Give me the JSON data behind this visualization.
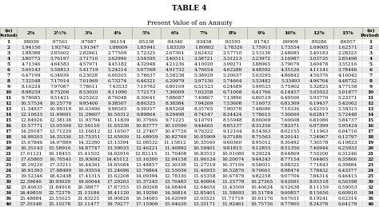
{
  "title1": "TABLE 4",
  "title2": "Present Value of an Annuity",
  "columns": [
    "(n)\nPeriods",
    "2%",
    "2½%",
    "3%",
    "4%",
    "5%",
    "6%",
    "7%",
    "8%",
    "9%",
    "10%",
    "12%",
    "15%",
    "(n)\nPeriods"
  ],
  "rows": [
    [
      1,
      ".98039",
      ".97561",
      ".97087",
      ".96154",
      ".95238",
      ".94340",
      ".93458",
      ".92593",
      ".91743",
      ".90909",
      ".89286",
      ".86957",
      1
    ],
    [
      2,
      "1.94156",
      "1.92742",
      "1.91347",
      "1.88609",
      "1.85941",
      "1.83339",
      "1.80802",
      "1.78326",
      "1.75911",
      "1.73554",
      "1.69005",
      "1.62571",
      2
    ],
    [
      3,
      "2.88388",
      "2.85602",
      "2.82861",
      "2.77509",
      "2.72325",
      "2.67301",
      "2.62432",
      "2.57710",
      "2.53130",
      "2.48685",
      "2.40183",
      "2.28323",
      3
    ],
    [
      4,
      "3.80773",
      "3.76197",
      "3.71710",
      "3.62990",
      "3.54595",
      "3.46511",
      "3.38721",
      "3.31213",
      "3.23972",
      "3.16987",
      "3.03735",
      "2.85498",
      4
    ],
    [
      5,
      "4.71346",
      "4.64583",
      "4.57971",
      "4.45182",
      "4.32948",
      "4.21236",
      "4.10020",
      "3.99271",
      "3.88965",
      "3.79079",
      "3.60478",
      "3.35216",
      5
    ],
    [
      6,
      "5.60143",
      "5.50813",
      "5.41719",
      "5.24214",
      "5.07569",
      "4.91732",
      "4.76654",
      "4.62288",
      "4.48592",
      "4.35526",
      "4.11141",
      "3.78448",
      6
    ],
    [
      7,
      "6.47199",
      "6.34939",
      "6.23028",
      "6.00205",
      "5.78637",
      "5.58238",
      "5.38929",
      "5.20637",
      "5.03295",
      "4.86842",
      "4.56376",
      "4.16042",
      7
    ],
    [
      8,
      "7.32548",
      "7.17014",
      "7.01969",
      "6.73274",
      "6.46321",
      "6.20979",
      "5.97130",
      "5.74664",
      "5.53482",
      "5.33493",
      "4.96764",
      "4.48732",
      8
    ],
    [
      9,
      "8.16224",
      "7.97087",
      "7.78611",
      "7.43533",
      "7.10782",
      "6.80169",
      "6.51523",
      "6.24689",
      "5.99525",
      "5.75902",
      "5.32825",
      "4.77158",
      9
    ],
    [
      10,
      "8.98259",
      "8.75206",
      "8.53020",
      "8.11090",
      "7.72173",
      "7.36009",
      "7.02358",
      "6.71008",
      "6.41766",
      "6.14457",
      "5.65022",
      "5.01877",
      10
    ],
    [
      11,
      "9.78685",
      "9.51421",
      "9.25262",
      "8.76048",
      "8.30641",
      "7.88687",
      "7.49867",
      "7.13896",
      "6.80519",
      "6.49506",
      "5.93770",
      "5.23371",
      11
    ],
    [
      12,
      "10.57534",
      "10.25776",
      "9.95400",
      "9.38507",
      "8.86325",
      "8.38384",
      "7.94269",
      "7.53608",
      "7.16073",
      "6.81369",
      "6.19437",
      "5.42062",
      12
    ],
    [
      13,
      "11.34837",
      "10.98318",
      "10.63496",
      "9.98565",
      "9.39357",
      "8.85268",
      "8.35765",
      "7.90378",
      "7.48690",
      "7.10336",
      "6.42355",
      "5.58315",
      13
    ],
    [
      14,
      "12.10625",
      "11.69091",
      "11.29607",
      "10.56312",
      "9.89864",
      "9.29498",
      "8.74547",
      "8.24424",
      "7.78615",
      "7.36669",
      "6.62817",
      "5.72448",
      14
    ],
    [
      15,
      "12.84926",
      "12.38138",
      "11.93794",
      "11.11839",
      "10.37966",
      "9.71225",
      "9.10791",
      "8.55948",
      "8.06069",
      "7.60608",
      "6.81086",
      "5.84737",
      15
    ],
    [
      16,
      "13.57771",
      "13.05500",
      "12.56110",
      "11.65230",
      "10.83777",
      "10.10590",
      "9.44665",
      "8.85137",
      "8.31256",
      "7.82371",
      "6.97399",
      "5.95424",
      16
    ],
    [
      17,
      "14.29187",
      "13.71220",
      "13.16612",
      "12.16567",
      "11.27407",
      "10.47726",
      "9.76322",
      "9.12164",
      "8.54363",
      "8.02155",
      "7.11963",
      "6.04716",
      17
    ],
    [
      18,
      "14.99203",
      "14.35336",
      "13.75351",
      "12.65930",
      "11.68959",
      "10.82760",
      "10.05909",
      "9.37189",
      "8.75563",
      "8.20141",
      "7.24967",
      "6.12797",
      18
    ],
    [
      19,
      "15.67846",
      "14.97889",
      "14.32380",
      "13.13394",
      "12.08532",
      "11.15812",
      "10.33560",
      "9.60360",
      "8.95012",
      "8.36492",
      "7.36578",
      "6.19823",
      19
    ],
    [
      20,
      "16.35143",
      "15.58916",
      "14.87747",
      "13.59033",
      "12.46221",
      "11.46992",
      "10.59401",
      "9.81815",
      "9.12855",
      "8.51356",
      "7.46944",
      "6.25933",
      20
    ],
    [
      21,
      "17.01121",
      "16.18455",
      "15.41502",
      "14.02916",
      "12.82115",
      "11.76408",
      "10.83553",
      "10.01680",
      "9.29224",
      "8.64869",
      "7.56200",
      "6.31246",
      21
    ],
    [
      22,
      "17.65805",
      "16.76541",
      "15.93692",
      "14.45112",
      "13.16300",
      "12.04158",
      "11.06124",
      "10.20074",
      "9.44243",
      "8.77154",
      "7.64465",
      "6.35866",
      22
    ],
    [
      23,
      "18.29220",
      "17.33211",
      "16.44361",
      "14.85684",
      "13.48857",
      "12.30338",
      "11.27219",
      "10.37106",
      "9.58021",
      "8.88322",
      "7.71843",
      "6.39884",
      23
    ],
    [
      24,
      "18.91393",
      "17.88499",
      "16.93554",
      "15.24696",
      "13.79864",
      "12.55036",
      "11.46933",
      "10.52876",
      "9.70661",
      "8.98474",
      "7.78432",
      "6.43377",
      24
    ],
    [
      25,
      "19.52346",
      "18.42438",
      "17.41315",
      "15.62208",
      "14.09394",
      "12.78336",
      "11.65358",
      "10.67478",
      "9.82258",
      "9.07704",
      "7.84314",
      "6.46415",
      25
    ],
    [
      30,
      "22.39646",
      "20.93029",
      "19.60044",
      "17.29203",
      "15.37245",
      "13.76483",
      "12.40904",
      "11.25778",
      "10.27365",
      "9.42691",
      "8.05518",
      "6.56598",
      30
    ],
    [
      32,
      "23.46833",
      "21.84918",
      "20.38877",
      "17.87355",
      "15.80268",
      "14.08404",
      "12.64656",
      "11.43500",
      "10.40624",
      "9.52638",
      "8.11159",
      "6.59053",
      32
    ],
    [
      34,
      "24.49859",
      "22.72379",
      "21.13184",
      "18.41120",
      "16.19290",
      "14.36814",
      "12.85401",
      "11.58693",
      "10.51784",
      "9.60857",
      "8.15656",
      "6.60910",
      34
    ],
    [
      36,
      "25.48884",
      "23.55625",
      "21.83225",
      "18.90828",
      "16.54685",
      "14.62099",
      "13.03521",
      "11.71719",
      "10.61176",
      "9.67651",
      "8.19241",
      "6.62314",
      36
    ],
    [
      40,
      "27.35548",
      "25.10278",
      "23.11477",
      "19.79277",
      "17.15909",
      "15.04630",
      "13.33171",
      "11.92461",
      "10.75736",
      "9.77905",
      "8.24378",
      "6.64179",
      40
    ]
  ],
  "bg_color": "#ffffff",
  "header_bg": "#e0e0d8",
  "row_colors": [
    "#ffffff",
    "#ebebeb"
  ],
  "font_size": 4.2,
  "header_font_size": 4.5,
  "title1_size": 6.5,
  "title2_size": 5.5
}
